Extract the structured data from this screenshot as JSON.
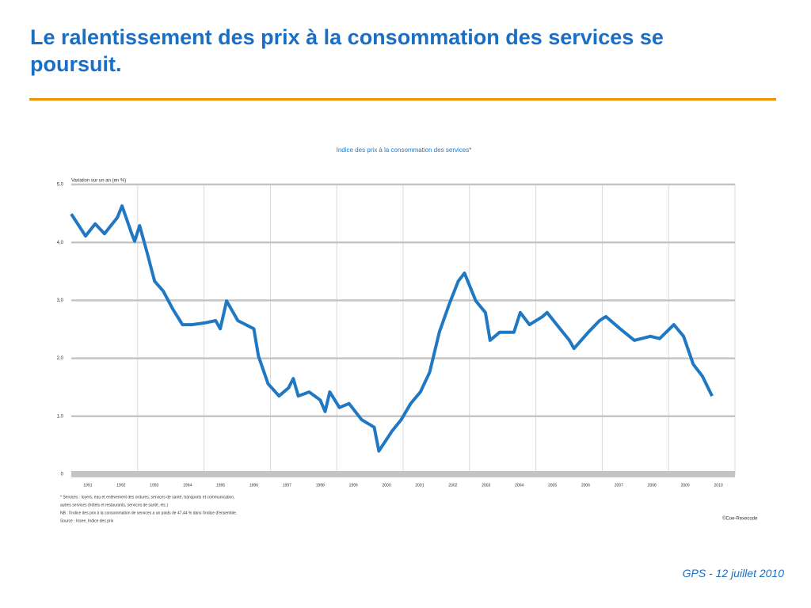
{
  "title": "Le ralentissement des prix à la consommation des services se poursuit.",
  "footer": "GPS - 12 juillet 2010",
  "chart_data": {
    "type": "line",
    "title": "Indice des prix à la consommation des services*",
    "ylabel": "Variation sur un an (en %)",
    "x": [
      1990.5,
      1990.93,
      1991.22,
      1991.5,
      1991.89,
      1992.03,
      1992.32,
      1992.41,
      1992.56,
      1992.79,
      1993.01,
      1993.27,
      1993.56,
      1993.85,
      1994.13,
      1994.52,
      1994.85,
      1994.99,
      1995.18,
      1995.52,
      1996.0,
      1996.14,
      1996.43,
      1996.76,
      1997.05,
      1997.19,
      1997.34,
      1997.67,
      1998.0,
      1998.15,
      1998.29,
      1998.58,
      1998.87,
      1999.25,
      1999.63,
      1999.77,
      2000.16,
      2000.44,
      2000.73,
      2001.02,
      2001.3,
      2001.59,
      2001.88,
      2002.16,
      2002.35,
      2002.69,
      2002.98,
      2003.12,
      2003.41,
      2003.84,
      2004.03,
      2004.31,
      2004.7,
      2004.84,
      2005.13,
      2005.51,
      2005.65,
      2006.08,
      2006.42,
      2006.61,
      2007.04,
      2007.47,
      2007.95,
      2008.23,
      2008.66,
      2008.95,
      2009.24,
      2009.52,
      2009.81
    ],
    "series": [
      {
        "name": "Services",
        "color": "#1f78c1",
        "values": [
          4.49,
          4.11,
          4.32,
          4.15,
          4.43,
          4.63,
          4.15,
          4.02,
          4.29,
          3.81,
          3.33,
          3.16,
          2.85,
          2.58,
          2.58,
          2.61,
          2.65,
          2.51,
          2.99,
          2.65,
          2.51,
          2.04,
          1.56,
          1.35,
          1.49,
          1.65,
          1.35,
          1.42,
          1.28,
          1.08,
          1.42,
          1.15,
          1.22,
          0.94,
          0.81,
          0.4,
          0.74,
          0.94,
          1.22,
          1.42,
          1.76,
          2.45,
          2.92,
          3.33,
          3.47,
          2.99,
          2.79,
          2.31,
          2.45,
          2.45,
          2.79,
          2.58,
          2.72,
          2.79,
          2.58,
          2.31,
          2.17,
          2.45,
          2.65,
          2.72,
          2.51,
          2.31,
          2.38,
          2.34,
          2.58,
          2.38,
          1.9,
          1.69,
          1.35
        ]
      }
    ],
    "xlim": [
      1990.5,
      2010.5
    ],
    "xticks": [
      1991,
      1992,
      1993,
      1994,
      1995,
      1996,
      1997,
      1998,
      1999,
      2000,
      2001,
      2002,
      2003,
      2004,
      2005,
      2006,
      2007,
      2008,
      2009,
      2010
    ],
    "ylim": [
      0,
      5
    ],
    "yticks": [
      0,
      {
        "value": 1,
        "label": "1,0"
      },
      {
        "value": 2,
        "label": "2,0"
      },
      {
        "value": 3,
        "label": "3,0"
      },
      {
        "value": 4,
        "label": "4,0"
      },
      {
        "value": 5,
        "label": "5,0"
      }
    ],
    "grid": true,
    "notes": [
      "* Services : loyers, eau et enlèvement des ordures, services de santé, transports et communication,",
      "autres services (hôtels et restaurants, services de santé, etc.)",
      "NB : l'indice des prix à la consommation de services a un poids de 47,44 % dans l'indice d'ensemble.",
      "Source : Insee, Indice des prix"
    ],
    "credit": "©Coe-Rexecode"
  }
}
